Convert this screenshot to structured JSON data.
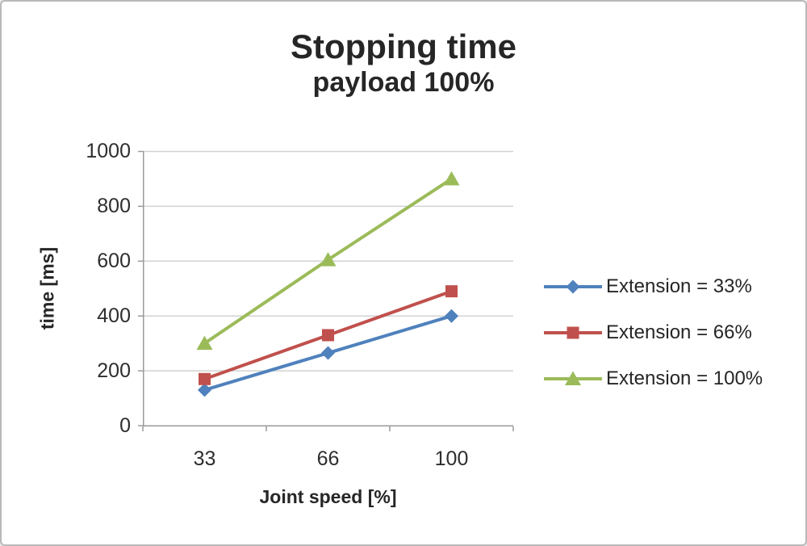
{
  "title": "Stopping time",
  "subtitle": "payload 100%",
  "chart_data": {
    "type": "line",
    "categories": [
      "33",
      "66",
      "100"
    ],
    "series": [
      {
        "name": "Extension = 33%",
        "values": [
          130,
          265,
          400
        ],
        "color": "#4f81bd",
        "marker": "diamond"
      },
      {
        "name": "Extension = 66%",
        "values": [
          170,
          330,
          490
        ],
        "color": "#c0504d",
        "marker": "square"
      },
      {
        "name": "Extension = 100%",
        "values": [
          300,
          605,
          900
        ],
        "color": "#9bbb59",
        "marker": "triangle"
      }
    ],
    "xlabel": "Joint speed [%]",
    "ylabel": "time [ms]",
    "ylim": [
      0,
      1000
    ],
    "yticks": [
      0,
      200,
      400,
      600,
      800,
      1000
    ],
    "ytick_labels_desc": [
      "1000",
      "800",
      "600",
      "400",
      "200",
      "0"
    ],
    "grid": "horizontal",
    "legend_position": "right"
  },
  "colors": {
    "grid": "#d2d2d2",
    "axis": "#9a9a9a",
    "text": "#262626",
    "background": "#ffffff"
  }
}
